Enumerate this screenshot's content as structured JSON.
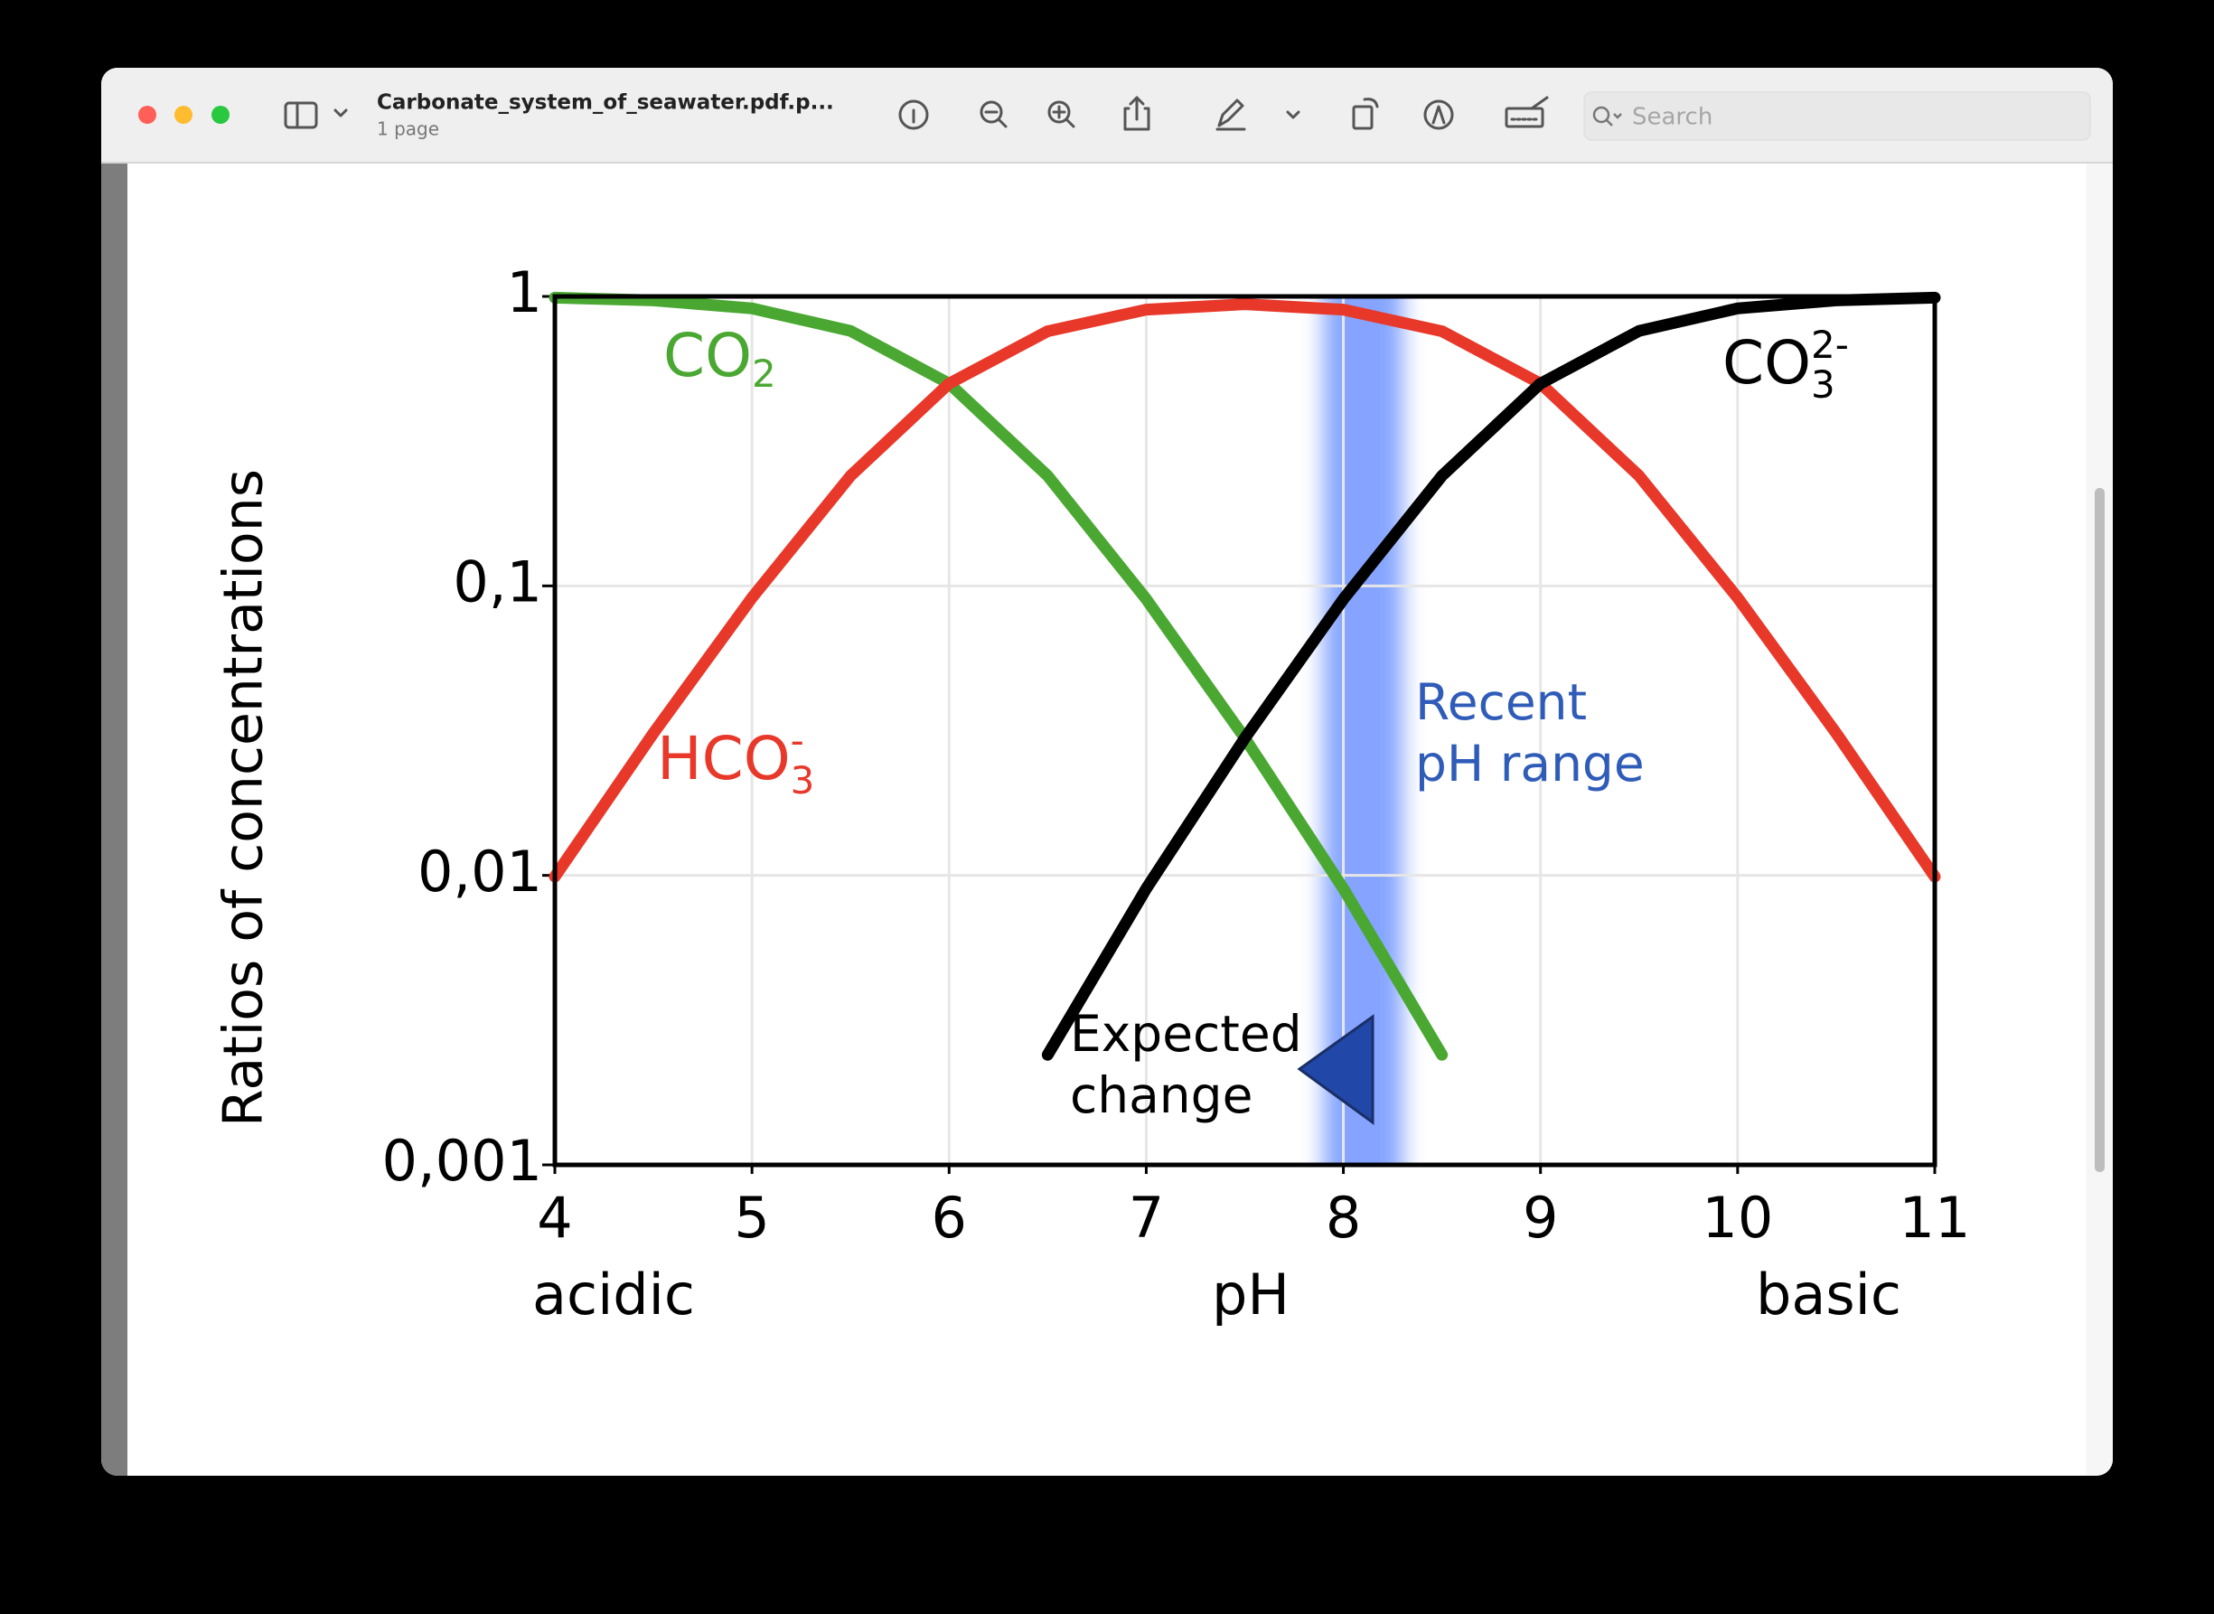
{
  "window": {
    "title": "Carbonate_system_of_seawater.pdf.p...",
    "subtitle": "1 page",
    "search_placeholder": "Search"
  },
  "chart_data": {
    "type": "line",
    "y_label": "Ratios of concentrations",
    "x_label": "pH",
    "x_label_left": "acidic",
    "x_label_right": "basic",
    "x": [
      4,
      4.5,
      5,
      5.5,
      6,
      6.5,
      7,
      7.5,
      8,
      8.5,
      9,
      9.5,
      10,
      10.5,
      11
    ],
    "series": [
      {
        "name": "CO",
        "sub": "2",
        "color": "#4aa832",
        "values": [
          0.99,
          0.969,
          0.909,
          0.76,
          0.5,
          0.24,
          0.09,
          0.0298,
          0.009,
          0.0024,
          null,
          null,
          null,
          null,
          null
        ]
      },
      {
        "name": "HCO",
        "sub": "3",
        "sup": "-",
        "color": "#e8382a",
        "values": [
          0.0099,
          0.031,
          0.091,
          0.24,
          0.5,
          0.758,
          0.9,
          0.94,
          0.9,
          0.758,
          0.5,
          0.24,
          0.091,
          0.031,
          0.0099
        ]
      },
      {
        "name": "CO",
        "sub": "3",
        "sup": "2-",
        "color": "#000000",
        "values": [
          null,
          null,
          null,
          null,
          null,
          0.0024,
          0.009,
          0.0298,
          0.09,
          0.24,
          0.5,
          0.76,
          0.909,
          0.969,
          0.99
        ]
      }
    ],
    "xlim": [
      4,
      11
    ],
    "xticks": [
      4,
      5,
      6,
      7,
      8,
      9,
      10,
      11
    ],
    "ylim": [
      0.001,
      1
    ],
    "yticks": [
      {
        "value": 0.001,
        "label": "0,001"
      },
      {
        "value": 0.01,
        "label": "0,01"
      },
      {
        "value": 0.1,
        "label": "0,1"
      },
      1
    ],
    "log_y": true,
    "grid": true,
    "band": {
      "range": [
        7.9,
        8.3
      ],
      "color": "#6f94ff",
      "label": [
        "Recent",
        "pH range"
      ],
      "label_color": "#2f5cb8"
    },
    "annotation": [
      "Expected",
      "change"
    ]
  }
}
